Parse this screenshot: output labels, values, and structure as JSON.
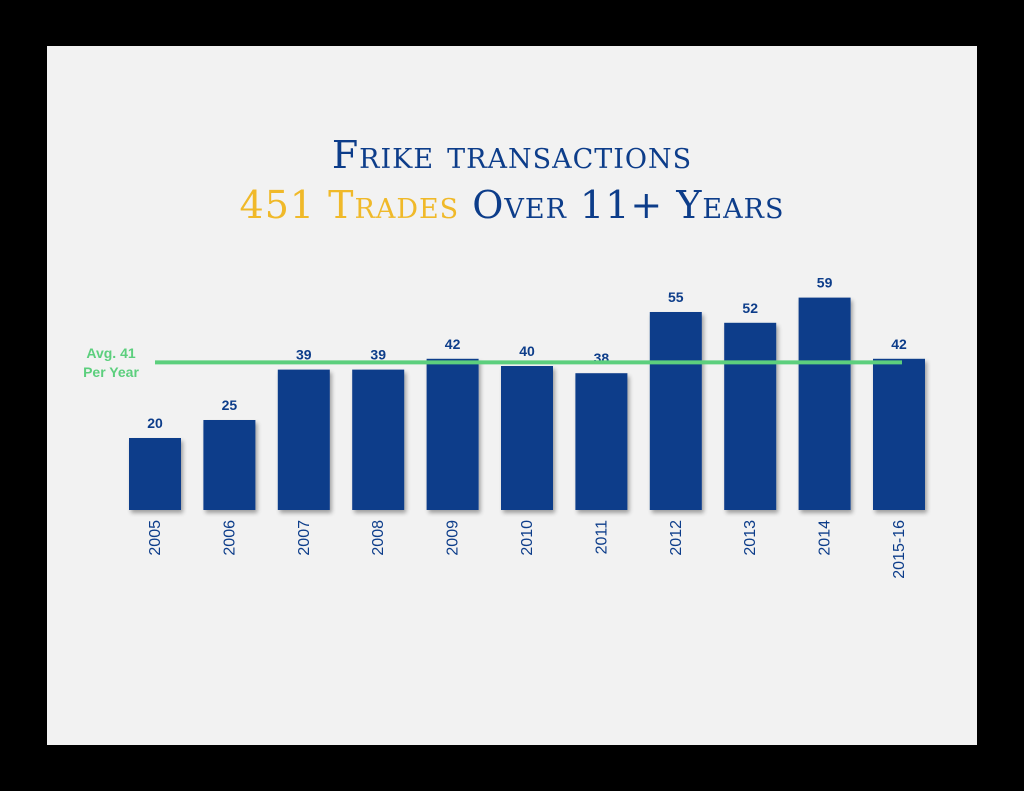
{
  "title": "Frike transactions",
  "subtitle": {
    "highlight": "451 Trades",
    "rest": "Over 11+ Years"
  },
  "colors": {
    "slide_background": "#f2f2f2",
    "frame": "#000000",
    "title": "#0d3d8a",
    "highlight": "#f0b929",
    "bar": "#0d3d8a",
    "average_line": "#5ccf7d"
  },
  "chart_data": {
    "type": "bar",
    "categories": [
      "2005",
      "2006",
      "2007",
      "2008",
      "2009",
      "2010",
      "2011",
      "2012",
      "2013",
      "2014",
      "2015-16"
    ],
    "values": [
      20,
      25,
      39,
      39,
      42,
      40,
      38,
      55,
      52,
      59,
      42
    ],
    "ylim": [
      0,
      60
    ],
    "grid": false,
    "legend": "none",
    "data_labels": true,
    "x_tick_orientation": "vertical",
    "average": {
      "value": 41,
      "label_line1": "Avg. 41",
      "label_line2": "Per Year"
    }
  }
}
